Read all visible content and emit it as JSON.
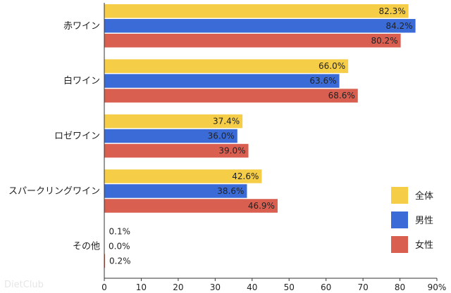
{
  "chart_data": {
    "type": "bar",
    "orientation": "horizontal",
    "categories": [
      "赤ワイン",
      "白ワイン",
      "ロゼワイン",
      "スパークリングワイン",
      "その他"
    ],
    "series": [
      {
        "name": "全体",
        "color": "#f6cd46",
        "values": [
          82.3,
          66.0,
          37.4,
          42.6,
          0.1
        ]
      },
      {
        "name": "男性",
        "color": "#3a6bd6",
        "values": [
          84.2,
          63.6,
          36.0,
          38.6,
          0.0
        ]
      },
      {
        "name": "女性",
        "color": "#d95f51",
        "values": [
          80.2,
          68.6,
          39.0,
          46.9,
          0.2
        ]
      }
    ],
    "value_labels": [
      [
        "82.3%",
        "66.0%",
        "37.4%",
        "42.6%",
        "0.1%"
      ],
      [
        "84.2%",
        "63.6%",
        "36.0%",
        "38.6%",
        "0.0%"
      ],
      [
        "80.2%",
        "68.6%",
        "39.0%",
        "46.9%",
        "0.2%"
      ]
    ],
    "xlim": [
      0,
      90
    ],
    "xticks": [
      0,
      10,
      20,
      30,
      40,
      50,
      60,
      70,
      80,
      90
    ],
    "xtick_labels": [
      "0",
      "10",
      "20",
      "30",
      "40",
      "50",
      "60",
      "70",
      "80",
      "90%"
    ],
    "legend_position": "right",
    "grid": false
  },
  "watermark": "DietClub"
}
